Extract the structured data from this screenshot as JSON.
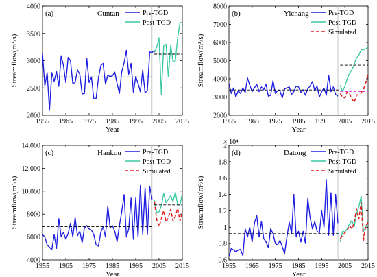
{
  "chart_data": [
    {
      "type": "line",
      "panel_label": "(a)",
      "station": "Cuntan",
      "xlabel": "Year",
      "ylabel": "Streamflow(m³/s)",
      "xlim": [
        1955,
        2015
      ],
      "ylim": [
        2000,
        4000
      ],
      "xticks": [
        1955,
        1965,
        1975,
        1985,
        1995,
        2005,
        2015
      ],
      "yticks": [
        2000,
        2500,
        3000,
        3500,
        4000
      ],
      "ytick_labels": [
        "2000",
        "2500",
        "3000",
        "3500",
        "4000"
      ],
      "legend_position": "top-right",
      "series": [
        {
          "name": "Pre-TGD",
          "color": "#1f1fe0",
          "dash": "solid",
          "x": [
            1955,
            1956,
            1957,
            1958,
            1959,
            1960,
            1961,
            1962,
            1963,
            1964,
            1965,
            1966,
            1967,
            1968,
            1969,
            1970,
            1971,
            1972,
            1973,
            1974,
            1975,
            1976,
            1977,
            1978,
            1979,
            1980,
            1981,
            1982,
            1983,
            1984,
            1985,
            1986,
            1987,
            1988,
            1989,
            1990,
            1991,
            1992,
            1993,
            1994,
            1995,
            1996,
            1997,
            1998,
            1999,
            2000,
            2001,
            2002,
            2003
          ],
          "y": [
            3130,
            2540,
            2780,
            2090,
            2780,
            2620,
            2800,
            2530,
            3090,
            2910,
            2600,
            3060,
            3000,
            2580,
            2600,
            2830,
            2750,
            2390,
            2400,
            3040,
            2600,
            2700,
            2300,
            2310,
            2680,
            2910,
            2950,
            2570,
            2730,
            2710,
            2720,
            2790,
            2580,
            2400,
            2800,
            2960,
            3190,
            2750,
            2950,
            2420,
            2710,
            2580,
            2430,
            2830,
            2410,
            2460,
            3160,
            3150,
            3190
          ]
        },
        {
          "name": "Post-TGD",
          "color": "#3cc9a4",
          "dash": "solid",
          "x": [
            2003,
            2004,
            2005,
            2006,
            2007,
            2008,
            2009,
            2010,
            2011,
            2012,
            2013,
            2014,
            2015
          ],
          "y": [
            3150,
            3250,
            3420,
            2380,
            3270,
            3300,
            2700,
            3280,
            2980,
            3000,
            3420,
            3700,
            3700
          ]
        },
        {
          "name": "Pre-TGD mean",
          "color": "#000000",
          "dash": "dashed",
          "legend": false,
          "x": [
            1955,
            2003
          ],
          "y": [
            2700,
            2700
          ]
        },
        {
          "name": "Post-TGD mean",
          "color": "#000000",
          "dash": "dashed",
          "legend": false,
          "x": [
            2003,
            2015
          ],
          "y": [
            3120,
            3120
          ]
        }
      ],
      "vline": {
        "x": 2002
      }
    },
    {
      "type": "line",
      "panel_label": "(b)",
      "station": "Yichang",
      "xlabel": "Year",
      "ylabel": "Streamflow(m³/s)",
      "xlim": [
        1955,
        2015
      ],
      "ylim": [
        2000,
        8000
      ],
      "xticks": [
        1955,
        1965,
        1975,
        1985,
        1995,
        2005,
        2015
      ],
      "yticks": [
        2000,
        3000,
        4000,
        5000,
        6000,
        7000,
        8000
      ],
      "ytick_labels": [
        "2000",
        "3000",
        "4000",
        "5000",
        "6000",
        "7000",
        "8000"
      ],
      "legend_position": "top-right",
      "series": [
        {
          "name": "Pre-TGD",
          "color": "#1f1fe0",
          "dash": "solid",
          "x": [
            1955,
            1956,
            1957,
            1958,
            1959,
            1960,
            1961,
            1962,
            1963,
            1964,
            1965,
            1966,
            1967,
            1968,
            1969,
            1970,
            1971,
            1972,
            1973,
            1974,
            1975,
            1976,
            1977,
            1978,
            1979,
            1980,
            1981,
            1982,
            1983,
            1984,
            1985,
            1986,
            1987,
            1988,
            1989,
            1990,
            1991,
            1992,
            1993,
            1994,
            1995,
            1996,
            1997,
            1998,
            1999,
            2000,
            2001,
            2002
          ],
          "y": [
            3750,
            3200,
            3500,
            3000,
            3350,
            3200,
            3500,
            3250,
            4050,
            3650,
            3300,
            3500,
            3700,
            3300,
            3550,
            3400,
            3700,
            3050,
            3100,
            3900,
            3200,
            3350,
            3350,
            2950,
            3450,
            3500,
            3550,
            3150,
            3300,
            3600,
            3550,
            3250,
            3400,
            3100,
            3450,
            3600,
            3850,
            3350,
            3600,
            3000,
            3300,
            3500,
            3100,
            4200,
            3300,
            3550,
            3150,
            3050
          ]
        },
        {
          "name": "Post-TGD",
          "color": "#3cc9a4",
          "dash": "solid",
          "x": [
            2003,
            2004,
            2005,
            2006,
            2007,
            2008,
            2009,
            2010,
            2011,
            2012,
            2013,
            2014,
            2015
          ],
          "y": [
            3650,
            3300,
            3600,
            4000,
            4300,
            4500,
            4800,
            5150,
            5300,
            5600,
            5600,
            5650,
            5750
          ]
        },
        {
          "name": "Simulated",
          "color": "#e01f1f",
          "dash": "dashed",
          "x": [
            2003,
            2004,
            2005,
            2006,
            2007,
            2008,
            2009,
            2010,
            2011,
            2012,
            2013,
            2014,
            2015
          ],
          "y": [
            3200,
            3000,
            2950,
            3300,
            3200,
            2900,
            2700,
            3100,
            3150,
            3250,
            3400,
            3800,
            4200
          ]
        },
        {
          "name": "Pre-TGD mean",
          "color": "#000000",
          "dash": "dashed",
          "legend": false,
          "x": [
            1955,
            2003
          ],
          "y": [
            3390,
            3390
          ]
        },
        {
          "name": "Post-TGD mean",
          "color": "#000000",
          "dash": "dashed",
          "legend": false,
          "x": [
            2003,
            2015
          ],
          "y": [
            4750,
            4750
          ]
        },
        {
          "name": "Simulated mean",
          "color": "#e020e0",
          "dash": "dashed",
          "legend": false,
          "x": [
            2003,
            2015
          ],
          "y": [
            3300,
            3300
          ]
        }
      ],
      "vline": {
        "x": 2002
      }
    },
    {
      "type": "line",
      "panel_label": "(c)",
      "station": "Hankou",
      "xlabel": "Year",
      "ylabel": "Streamflow(m³/s)",
      "xlim": [
        1955,
        2015
      ],
      "ylim": [
        4000,
        14000
      ],
      "xticks": [
        1955,
        1965,
        1975,
        1985,
        1995,
        2005,
        2015
      ],
      "yticks": [
        4000,
        6000,
        8000,
        10000,
        12000,
        14000
      ],
      "ytick_labels": [
        "4000",
        "6000",
        "8000",
        "10,000",
        "12,000",
        "14,000"
      ],
      "legend_position": "top-right",
      "series": [
        {
          "name": "Pre-TGD",
          "color": "#1f1fe0",
          "dash": "solid",
          "x": [
            1955,
            1956,
            1957,
            1958,
            1959,
            1960,
            1961,
            1962,
            1963,
            1964,
            1965,
            1966,
            1967,
            1968,
            1969,
            1970,
            1971,
            1972,
            1973,
            1974,
            1975,
            1976,
            1977,
            1978,
            1979,
            1980,
            1981,
            1982,
            1983,
            1984,
            1985,
            1986,
            1987,
            1988,
            1989,
            1990,
            1991,
            1992,
            1993,
            1994,
            1995,
            1996,
            1997,
            1998,
            1999,
            2000,
            2001,
            2002
          ],
          "y": [
            6200,
            6000,
            5300,
            5100,
            4900,
            6200,
            5000,
            7600,
            6000,
            6400,
            5800,
            6300,
            7200,
            6000,
            7700,
            6100,
            6500,
            5500,
            6800,
            7000,
            6700,
            6600,
            6200,
            5300,
            5200,
            6400,
            6900,
            6000,
            8700,
            6800,
            7000,
            6500,
            5600,
            7000,
            8200,
            9700,
            6000,
            6700,
            9400,
            5800,
            9400,
            6000,
            10500,
            6200,
            10300,
            6200,
            10400,
            9300
          ]
        },
        {
          "name": "Post-TGD",
          "color": "#3cc9a4",
          "dash": "solid",
          "x": [
            2003,
            2004,
            2005,
            2006,
            2007,
            2008,
            2009,
            2010,
            2011,
            2012,
            2013,
            2014,
            2015
          ],
          "y": [
            9200,
            8100,
            8200,
            8700,
            9800,
            9000,
            9300,
            9600,
            9100,
            9900,
            8800,
            8800,
            9800
          ]
        },
        {
          "name": "Simulated",
          "color": "#e01f1f",
          "dash": "dashed",
          "x": [
            2003,
            2004,
            2005,
            2006,
            2007,
            2008,
            2009,
            2010,
            2011,
            2012,
            2013,
            2014,
            2015
          ],
          "y": [
            9100,
            7500,
            6900,
            7600,
            8300,
            7300,
            7700,
            8400,
            7400,
            7800,
            8500,
            7400,
            8200
          ]
        },
        {
          "name": "Pre-TGD mean",
          "color": "#000000",
          "dash": "dashed",
          "legend": false,
          "x": [
            1955,
            2003
          ],
          "y": [
            6900,
            6900
          ]
        },
        {
          "name": "Post-TGD mean",
          "color": "#000000",
          "dash": "dashed",
          "legend": false,
          "x": [
            2003,
            2015
          ],
          "y": [
            8800,
            8800
          ]
        }
      ],
      "vline": {
        "x": 2002
      }
    },
    {
      "type": "line",
      "panel_label": "(d)",
      "station": "Datong",
      "xlabel": "Year",
      "ylabel": "Streamflow(m³/s)",
      "y_multiplier": "× 10⁴",
      "xlim": [
        1955,
        2015
      ],
      "ylim": [
        0.6,
        2.0
      ],
      "xticks": [
        1955,
        1965,
        1975,
        1985,
        1995,
        2005,
        2015
      ],
      "yticks": [
        0.6,
        0.8,
        1.0,
        1.2,
        1.4,
        1.6,
        1.8,
        2.0
      ],
      "ytick_labels": [
        "0.6",
        "0.8",
        "1",
        "1.2",
        "1.4",
        "1.6",
        "1.8",
        "2"
      ],
      "legend_position": "top-right",
      "series": [
        {
          "name": "Pre-TGD",
          "color": "#1f1fe0",
          "dash": "solid",
          "x": [
            1955,
            1956,
            1957,
            1958,
            1959,
            1960,
            1961,
            1962,
            1963,
            1964,
            1965,
            1966,
            1967,
            1968,
            1969,
            1970,
            1971,
            1972,
            1973,
            1974,
            1975,
            1976,
            1977,
            1978,
            1979,
            1980,
            1981,
            1982,
            1983,
            1984,
            1985,
            1986,
            1987,
            1988,
            1989,
            1990,
            1991,
            1992,
            1993,
            1994,
            1995,
            1996,
            1997,
            1998,
            1999,
            2000,
            2001,
            2002
          ],
          "y": [
            0.64,
            0.74,
            0.72,
            0.7,
            0.72,
            0.73,
            0.65,
            0.98,
            0.88,
            1.0,
            0.82,
            1.05,
            1.14,
            0.88,
            1.07,
            0.86,
            0.82,
            0.75,
            0.98,
            0.92,
            0.8,
            0.78,
            0.84,
            0.76,
            0.68,
            0.88,
            1.06,
            0.92,
            1.4,
            0.88,
            0.95,
            0.82,
            0.95,
            0.8,
            1.35,
            1.12,
            0.98,
            1.07,
            0.95,
            0.93,
            1.2,
            1.0,
            1.58,
            0.9,
            1.42,
            0.9,
            1.4,
            1.05
          ]
        },
        {
          "name": "Post-TGD",
          "color": "#3cc9a4",
          "dash": "solid",
          "x": [
            2003,
            2004,
            2005,
            2006,
            2007,
            2008,
            2009,
            2010,
            2011,
            2012,
            2013,
            2014,
            2015
          ],
          "y": [
            0.82,
            0.95,
            0.94,
            0.98,
            1.04,
            1.08,
            1.0,
            1.16,
            1.25,
            1.38,
            0.95,
            1.0,
            1.08
          ]
        },
        {
          "name": "Simulated",
          "color": "#e01f1f",
          "dash": "dashed",
          "x": [
            2003,
            2004,
            2005,
            2006,
            2007,
            2008,
            2009,
            2010,
            2011,
            2012,
            2013,
            2014,
            2015
          ],
          "y": [
            0.86,
            0.9,
            0.93,
            0.96,
            1.02,
            0.98,
            1.05,
            1.22,
            1.1,
            1.3,
            0.84,
            1.02,
            1.06
          ]
        },
        {
          "name": "Pre-TGD mean",
          "color": "#000000",
          "dash": "dashed",
          "legend": false,
          "x": [
            1955,
            2003
          ],
          "y": [
            0.92,
            0.92
          ]
        },
        {
          "name": "Post-TGD mean",
          "color": "#000000",
          "dash": "dashed",
          "legend": false,
          "x": [
            2003,
            2015
          ],
          "y": [
            1.04,
            1.04
          ]
        }
      ],
      "vline": {
        "x": 2002
      }
    }
  ]
}
